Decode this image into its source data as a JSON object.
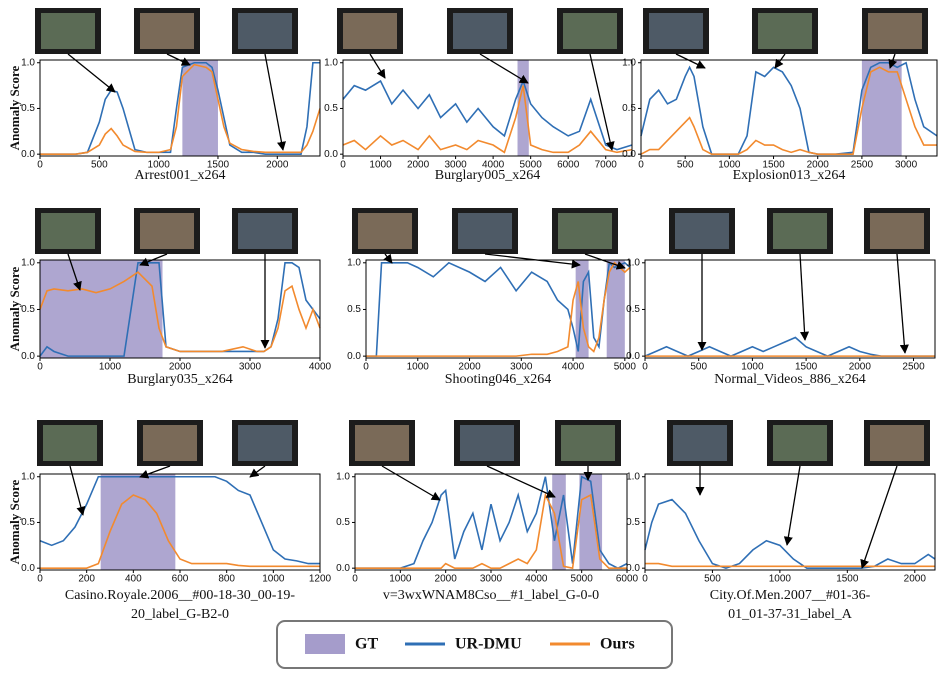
{
  "legend": [
    {
      "name": "GT",
      "color": "#a59ccb"
    },
    {
      "name": "UR-DMU",
      "color": "#2f6fb5"
    },
    {
      "name": "Ours",
      "color": "#f28a2e"
    }
  ],
  "chart_data": [
    {
      "type": "line",
      "title": "Arrest001_x264",
      "ylabel": "Anomaly Score",
      "xlim": [
        0,
        2360
      ],
      "ylim": [
        -0.02,
        1.03
      ],
      "xticks": [
        0,
        500,
        1000,
        1500,
        2000
      ],
      "yticks": [
        {
          "value": 0,
          "label": "0.0"
        },
        {
          "value": 0.5,
          "label": "0.5"
        },
        {
          "value": 1,
          "label": "1.0"
        }
      ],
      "gt": [
        [
          1200,
          1500
        ]
      ],
      "x": [
        0,
        100,
        200,
        300,
        400,
        500,
        550,
        600,
        650,
        700,
        800,
        900,
        1000,
        1100,
        1150,
        1200,
        1300,
        1400,
        1450,
        1500,
        1550,
        1600,
        1700,
        1800,
        1900,
        2000,
        2100,
        2200,
        2250,
        2300,
        2360
      ],
      "series": [
        {
          "color": "#2f6fb5",
          "values": [
            0,
            0,
            0,
            0,
            0.02,
            0.35,
            0.6,
            0.7,
            0.68,
            0.5,
            0.05,
            0.02,
            0.02,
            0.02,
            0.5,
            0.95,
            1.0,
            1.0,
            0.95,
            0.7,
            0.4,
            0.1,
            0.02,
            0.02,
            0,
            0,
            0,
            0,
            0.3,
            1.0,
            1.0
          ]
        },
        {
          "color": "#f28a2e",
          "values": [
            0,
            0,
            0,
            0,
            0.02,
            0.1,
            0.22,
            0.28,
            0.2,
            0.1,
            0.03,
            0.02,
            0.02,
            0.05,
            0.3,
            0.85,
            0.98,
            0.95,
            0.9,
            0.6,
            0.3,
            0.12,
            0.05,
            0.03,
            0.02,
            0.02,
            0.02,
            0.02,
            0.1,
            0.25,
            0.5
          ]
        }
      ]
    },
    {
      "type": "line",
      "title": "Burglary005_x264",
      "xlim": [
        0,
        7700
      ],
      "ylim": [
        -0.02,
        1.03
      ],
      "xticks": [
        0,
        1000,
        2000,
        3000,
        4000,
        5000,
        6000,
        7000
      ],
      "yticks": [
        {
          "value": 0,
          "label": "0.0"
        },
        {
          "value": 0.5,
          "label": "0.5"
        },
        {
          "value": 1,
          "label": "1.0"
        }
      ],
      "gt": [
        [
          4650,
          4950
        ]
      ],
      "x": [
        0,
        300,
        600,
        1000,
        1300,
        1600,
        2000,
        2300,
        2600,
        3000,
        3300,
        3600,
        4000,
        4300,
        4600,
        4800,
        5000,
        5300,
        5600,
        6000,
        6300,
        6600,
        7000,
        7300,
        7700
      ],
      "series": [
        {
          "color": "#2f6fb5",
          "values": [
            0.6,
            0.75,
            0.7,
            0.8,
            0.55,
            0.7,
            0.5,
            0.65,
            0.4,
            0.55,
            0.35,
            0.5,
            0.3,
            0.2,
            0.6,
            0.8,
            0.55,
            0.4,
            0.3,
            0.2,
            0.25,
            0.6,
            0.1,
            0.05,
            0.1
          ]
        },
        {
          "color": "#f28a2e",
          "values": [
            0.1,
            0.15,
            0.05,
            0.2,
            0.1,
            0.15,
            0.05,
            0.2,
            0.05,
            0.1,
            0.05,
            0.15,
            0.1,
            0.02,
            0.4,
            0.75,
            0.1,
            0.05,
            0.02,
            0.02,
            0.1,
            0.25,
            0.05,
            0.02,
            0.05
          ]
        }
      ]
    },
    {
      "type": "line",
      "title": "Explosion013_x264",
      "xlim": [
        0,
        3350
      ],
      "ylim": [
        -0.02,
        1.03
      ],
      "xticks": [
        0,
        500,
        1000,
        1500,
        2000,
        2500,
        3000
      ],
      "yticks": [
        {
          "value": 0,
          "label": "0.0"
        },
        {
          "value": 0.5,
          "label": "0.5"
        },
        {
          "value": 1,
          "label": "1.0"
        }
      ],
      "gt": [
        [
          2500,
          2950
        ]
      ],
      "x": [
        0,
        100,
        200,
        300,
        400,
        500,
        550,
        600,
        700,
        800,
        1000,
        1100,
        1200,
        1300,
        1400,
        1500,
        1600,
        1700,
        1800,
        1900,
        2000,
        2200,
        2400,
        2500,
        2600,
        2700,
        2800,
        2900,
        3000,
        3100,
        3200,
        3350
      ],
      "series": [
        {
          "color": "#2f6fb5",
          "values": [
            0.2,
            0.6,
            0.7,
            0.55,
            0.6,
            0.85,
            0.95,
            0.85,
            0.3,
            0,
            0,
            0,
            0.2,
            0.9,
            0.85,
            0.95,
            0.9,
            0.75,
            0.5,
            0.02,
            0,
            0,
            0.02,
            0.7,
            0.95,
            1.0,
            1.0,
            0.95,
            1.0,
            0.6,
            0.3,
            0.2
          ]
        },
        {
          "color": "#f28a2e",
          "values": [
            0,
            0.05,
            0.05,
            0.15,
            0.25,
            0.35,
            0.4,
            0.3,
            0.05,
            0,
            0,
            0,
            0.05,
            0.15,
            0.1,
            0.1,
            0.05,
            0.02,
            0.05,
            0.02,
            0,
            0,
            0,
            0.5,
            0.9,
            0.95,
            0.9,
            0.9,
            0.6,
            0.3,
            0.1,
            0.1
          ]
        }
      ]
    },
    {
      "type": "line",
      "title": "Burglary035_x264",
      "ylabel": "Anomaly Score",
      "xlim": [
        0,
        4000
      ],
      "ylim": [
        -0.02,
        1.03
      ],
      "xticks": [
        0,
        1000,
        2000,
        3000,
        4000
      ],
      "yticks": [
        {
          "value": 0,
          "label": "0.0"
        },
        {
          "value": 0.5,
          "label": "0.5"
        },
        {
          "value": 1,
          "label": "1.0"
        }
      ],
      "gt": [
        [
          0,
          1750
        ]
      ],
      "x": [
        0,
        100,
        200,
        400,
        600,
        800,
        1000,
        1200,
        1300,
        1400,
        1600,
        1700,
        1800,
        2000,
        2300,
        2600,
        2900,
        3100,
        3200,
        3300,
        3400,
        3500,
        3600,
        3700,
        3800,
        3900,
        4000
      ],
      "series": [
        {
          "color": "#2f6fb5",
          "values": [
            0,
            0.1,
            0.05,
            0,
            0,
            0,
            0,
            0,
            0.5,
            1.0,
            1.0,
            1.0,
            0.1,
            0.05,
            0.05,
            0.05,
            0.05,
            0.05,
            0.05,
            0.1,
            0.4,
            1.0,
            1.0,
            0.95,
            0.6,
            0.5,
            0.4
          ]
        },
        {
          "color": "#f28a2e",
          "values": [
            0.5,
            0.7,
            0.72,
            0.7,
            0.72,
            0.68,
            0.72,
            0.8,
            0.85,
            0.9,
            0.75,
            0.3,
            0.1,
            0.05,
            0.05,
            0.05,
            0.1,
            0.05,
            0.05,
            0.1,
            0.3,
            0.7,
            0.75,
            0.5,
            0.3,
            0.5,
            0.3
          ]
        }
      ]
    },
    {
      "type": "line",
      "title": "Shooting046_x264",
      "xlim": [
        0,
        5100
      ],
      "ylim": [
        -0.02,
        1.03
      ],
      "xticks": [
        0,
        1000,
        2000,
        3000,
        4000,
        5000
      ],
      "yticks": [
        {
          "value": 0,
          "label": "0.0"
        },
        {
          "value": 0.5,
          "label": "0.5"
        },
        {
          "value": 1,
          "label": "1.0"
        }
      ],
      "gt": [
        [
          4050,
          4300
        ],
        [
          4650,
          5000
        ]
      ],
      "x": [
        0,
        100,
        200,
        300,
        500,
        800,
        1000,
        1300,
        1600,
        2000,
        2300,
        2600,
        2900,
        3200,
        3500,
        3700,
        3900,
        4000,
        4100,
        4200,
        4300,
        4400,
        4500,
        4600,
        4700,
        4800,
        5000,
        5100
      ],
      "series": [
        {
          "color": "#2f6fb5",
          "values": [
            0,
            0,
            0,
            1.0,
            1.0,
            1.0,
            0.95,
            0.85,
            1.0,
            0.9,
            0.8,
            0.95,
            0.7,
            0.9,
            0.8,
            0.6,
            0.5,
            0.3,
            0.05,
            0.8,
            0.9,
            0.2,
            0.1,
            0.6,
            1.0,
            0.95,
            1.0,
            0.95
          ]
        },
        {
          "color": "#f28a2e",
          "values": [
            0,
            0,
            0,
            0,
            0,
            0,
            0,
            0,
            0,
            0,
            0,
            0,
            0,
            0.02,
            0.02,
            0.05,
            0.1,
            0.6,
            0.8,
            0.3,
            0.1,
            0.05,
            0.2,
            0.6,
            0.9,
            1.0,
            0.9,
            0.95
          ]
        }
      ]
    },
    {
      "type": "line",
      "title": "Normal_Videos_886_x264",
      "xlim": [
        0,
        2700
      ],
      "ylim": [
        -0.02,
        1.03
      ],
      "xticks": [
        0,
        500,
        1000,
        1500,
        2000,
        2500
      ],
      "yticks": [
        {
          "value": 0,
          "label": "0.0"
        },
        {
          "value": 0.5,
          "label": "0.5"
        },
        {
          "value": 1,
          "label": "1.0"
        }
      ],
      "gt": [],
      "x": [
        0,
        100,
        200,
        300,
        400,
        500,
        600,
        700,
        800,
        900,
        1000,
        1100,
        1200,
        1300,
        1400,
        1500,
        1600,
        1700,
        1800,
        1900,
        2000,
        2100,
        2200,
        2400,
        2700
      ],
      "series": [
        {
          "color": "#2f6fb5",
          "values": [
            0,
            0.05,
            0.1,
            0.05,
            0,
            0.05,
            0.1,
            0.05,
            0,
            0.05,
            0.1,
            0.05,
            0.1,
            0.15,
            0.2,
            0.1,
            0.05,
            0,
            0.05,
            0.1,
            0.05,
            0.02,
            0,
            0,
            0
          ]
        },
        {
          "color": "#f28a2e",
          "values": [
            0,
            0,
            0,
            0,
            0,
            0,
            0,
            0,
            0,
            0,
            0,
            0,
            0,
            0,
            0,
            0,
            0,
            0,
            0,
            0,
            0,
            0,
            0,
            0,
            0
          ]
        }
      ]
    },
    {
      "type": "line",
      "title": [
        "Casino.Royale.2006__#00-18-30_00-19-",
        "20_label_G-B2-0"
      ],
      "ylabel": "Anomaly Score",
      "xlim": [
        0,
        1200
      ],
      "ylim": [
        -0.02,
        1.03
      ],
      "xticks": [
        0,
        200,
        400,
        600,
        800,
        1000,
        1200
      ],
      "yticks": [
        {
          "value": 0,
          "label": "0.0"
        },
        {
          "value": 0.5,
          "label": "0.5"
        },
        {
          "value": 1,
          "label": "1.0"
        }
      ],
      "gt": [
        [
          260,
          580
        ]
      ],
      "x": [
        0,
        50,
        100,
        150,
        200,
        250,
        300,
        350,
        400,
        450,
        500,
        550,
        600,
        650,
        700,
        750,
        800,
        850,
        900,
        950,
        1000,
        1050,
        1100,
        1150,
        1200
      ],
      "series": [
        {
          "color": "#2f6fb5",
          "values": [
            0.3,
            0.25,
            0.3,
            0.45,
            0.7,
            1.0,
            1.0,
            1.0,
            1.0,
            1.0,
            1.0,
            1.0,
            1.0,
            1.0,
            1.0,
            1.0,
            0.95,
            0.85,
            0.8,
            0.5,
            0.2,
            0.1,
            0.08,
            0.05,
            0.05
          ]
        },
        {
          "color": "#f28a2e",
          "values": [
            0,
            0,
            0,
            0,
            0,
            0.05,
            0.4,
            0.7,
            0.8,
            0.75,
            0.6,
            0.3,
            0.1,
            0.05,
            0.05,
            0.05,
            0.05,
            0.03,
            0.02,
            0.02,
            0.02,
            0.02,
            0.02,
            0.02,
            0.02
          ]
        }
      ]
    },
    {
      "type": "line",
      "title": "v=3wxWNAM8Cso__#1_label_G-0-0",
      "xlim": [
        0,
        6000
      ],
      "ylim": [
        -0.02,
        1.03
      ],
      "xticks": [
        0,
        1000,
        2000,
        3000,
        4000,
        5000,
        6000
      ],
      "yticks": [
        {
          "value": 0,
          "label": "0.0"
        },
        {
          "value": 0.5,
          "label": "0.5"
        },
        {
          "value": 1,
          "label": "1.0"
        }
      ],
      "gt": [
        [
          4350,
          4650
        ],
        [
          4950,
          5450
        ]
      ],
      "x": [
        0,
        500,
        1000,
        1300,
        1500,
        1700,
        1900,
        2000,
        2200,
        2400,
        2600,
        2800,
        3000,
        3200,
        3400,
        3600,
        3800,
        4000,
        4200,
        4400,
        4600,
        4800,
        5000,
        5200,
        5400,
        5600,
        5800,
        6000
      ],
      "series": [
        {
          "color": "#2f6fb5",
          "values": [
            0,
            0,
            0,
            0.05,
            0.3,
            0.5,
            0.8,
            0.85,
            0.1,
            0.4,
            0.6,
            0.2,
            0.7,
            0.3,
            0.5,
            0.8,
            0.4,
            0.6,
            1.0,
            0.3,
            0.8,
            0.05,
            1.0,
            0.95,
            0.2,
            0.05,
            0,
            0.05
          ]
        },
        {
          "color": "#f28a2e",
          "values": [
            0,
            0,
            0,
            0,
            0,
            0,
            0,
            0.05,
            0,
            0,
            0,
            0.05,
            0,
            0,
            0.05,
            0.1,
            0.05,
            0.2,
            0.8,
            0.6,
            0.02,
            0,
            0.75,
            0.8,
            0.1,
            0,
            0,
            0
          ]
        }
      ]
    },
    {
      "type": "line",
      "title": [
        "City.Of.Men.2007__#01-36-",
        "01_01-37-31_label_A"
      ],
      "xlim": [
        0,
        2150
      ],
      "ylim": [
        -0.02,
        1.03
      ],
      "xticks": [
        0,
        500,
        1000,
        1500,
        2000
      ],
      "yticks": [
        {
          "value": 0,
          "label": "0.0"
        },
        {
          "value": 0.5,
          "label": "0.5"
        },
        {
          "value": 1,
          "label": "1.0"
        }
      ],
      "gt": [],
      "x": [
        0,
        50,
        100,
        200,
        300,
        400,
        500,
        600,
        700,
        800,
        900,
        1000,
        1100,
        1200,
        1400,
        1600,
        1700,
        1800,
        1900,
        2000,
        2100,
        2150
      ],
      "series": [
        {
          "color": "#2f6fb5",
          "values": [
            0.2,
            0.5,
            0.7,
            0.75,
            0.6,
            0.3,
            0.05,
            0,
            0.05,
            0.2,
            0.3,
            0.25,
            0.1,
            0,
            0,
            0,
            0.02,
            0.1,
            0.05,
            0.05,
            0.15,
            0.1
          ]
        },
        {
          "color": "#f28a2e",
          "values": [
            0.05,
            0.05,
            0.05,
            0.02,
            0.02,
            0.02,
            0.02,
            0.02,
            0.02,
            0.02,
            0.02,
            0.02,
            0.02,
            0.02,
            0.02,
            0.02,
            0.02,
            0.02,
            0.02,
            0.02,
            0.02,
            0.02
          ]
        }
      ]
    }
  ]
}
